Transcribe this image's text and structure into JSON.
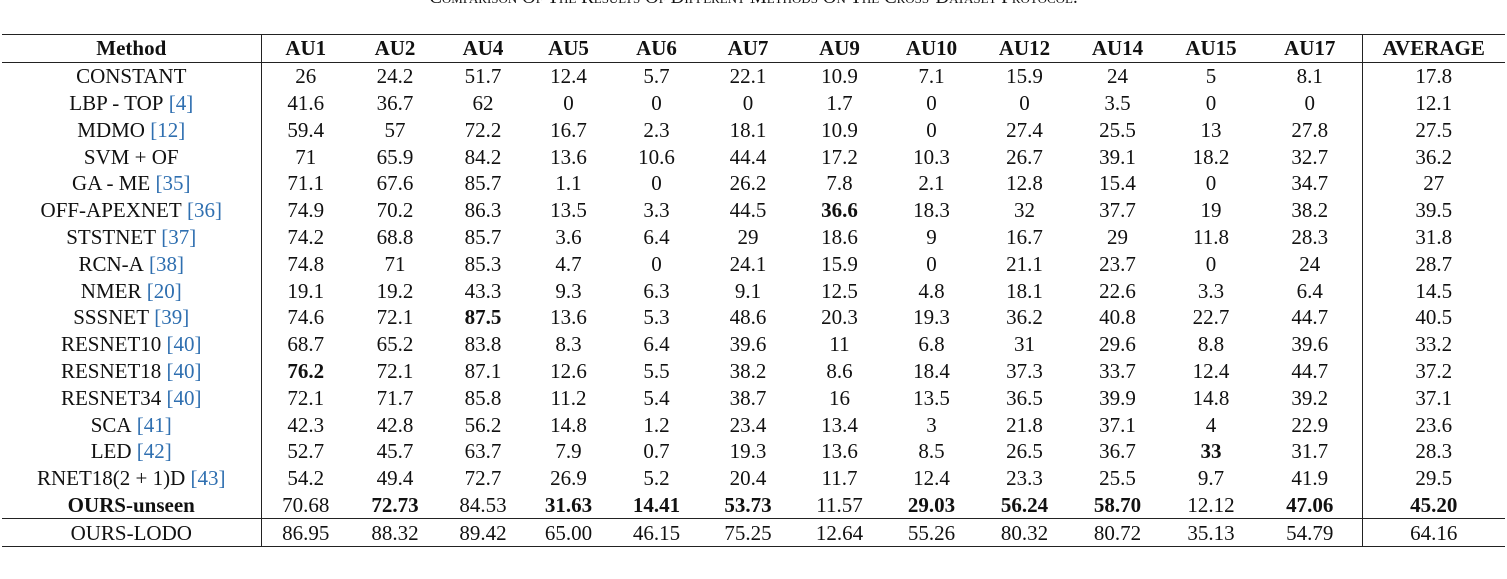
{
  "title": "Comparison Of The Results Of Different Methods On The Cross-Dataset Protocol.",
  "table": {
    "header": [
      "Method",
      "AU1",
      "AU2",
      "AU4",
      "AU5",
      "AU6",
      "AU7",
      "AU9",
      "AU10",
      "AU12",
      "AU14",
      "AU15",
      "AU17",
      "AVERAGE"
    ],
    "rows": [
      {
        "method": "CONSTANT",
        "values": [
          "26",
          "24.2",
          "51.7",
          "12.4",
          "5.7",
          "22.1",
          "10.9",
          "7.1",
          "15.9",
          "24",
          "5",
          "8.1",
          "17.8"
        ],
        "bold": []
      },
      {
        "method": "LBP - TOP",
        "ref": "[4]",
        "values": [
          "41.6",
          "36.7",
          "62",
          "0",
          "0",
          "0",
          "1.7",
          "0",
          "0",
          "3.5",
          "0",
          "0",
          "12.1"
        ],
        "bold": []
      },
      {
        "method": "MDMO",
        "ref": "[12]",
        "values": [
          "59.4",
          "57",
          "72.2",
          "16.7",
          "2.3",
          "18.1",
          "10.9",
          "0",
          "27.4",
          "25.5",
          "13",
          "27.8",
          "27.5"
        ],
        "bold": []
      },
      {
        "method": "SVM + OF",
        "values": [
          "71",
          "65.9",
          "84.2",
          "13.6",
          "10.6",
          "44.4",
          "17.2",
          "10.3",
          "26.7",
          "39.1",
          "18.2",
          "32.7",
          "36.2"
        ],
        "bold": []
      },
      {
        "method": "GA - ME",
        "ref": "[35]",
        "values": [
          "71.1",
          "67.6",
          "85.7",
          "1.1",
          "0",
          "26.2",
          "7.8",
          "2.1",
          "12.8",
          "15.4",
          "0",
          "34.7",
          "27"
        ],
        "bold": []
      },
      {
        "method": "OFF-APEXNET",
        "ref": "[36]",
        "values": [
          "74.9",
          "70.2",
          "86.3",
          "13.5",
          "3.3",
          "44.5",
          "36.6",
          "18.3",
          "32",
          "37.7",
          "19",
          "38.2",
          "39.5"
        ],
        "bold": [
          6
        ]
      },
      {
        "method": "STSTNET",
        "ref": "[37]",
        "values": [
          "74.2",
          "68.8",
          "85.7",
          "3.6",
          "6.4",
          "29",
          "18.6",
          "9",
          "16.7",
          "29",
          "11.8",
          "28.3",
          "31.8"
        ],
        "bold": []
      },
      {
        "method": "RCN-A",
        "ref": "[38]",
        "values": [
          "74.8",
          "71",
          "85.3",
          "4.7",
          "0",
          "24.1",
          "15.9",
          "0",
          "21.1",
          "23.7",
          "0",
          "24",
          "28.7"
        ],
        "bold": []
      },
      {
        "method": "NMER",
        "ref": "[20]",
        "values": [
          "19.1",
          "19.2",
          "43.3",
          "9.3",
          "6.3",
          "9.1",
          "12.5",
          "4.8",
          "18.1",
          "22.6",
          "3.3",
          "6.4",
          "14.5"
        ],
        "bold": []
      },
      {
        "method": "SSSNET",
        "ref": "[39]",
        "values": [
          "74.6",
          "72.1",
          "87.5",
          "13.6",
          "5.3",
          "48.6",
          "20.3",
          "19.3",
          "36.2",
          "40.8",
          "22.7",
          "44.7",
          "40.5"
        ],
        "bold": [
          2
        ]
      },
      {
        "method": "RESNET10",
        "ref": "[40]",
        "values": [
          "68.7",
          "65.2",
          "83.8",
          "8.3",
          "6.4",
          "39.6",
          "11",
          "6.8",
          "31",
          "29.6",
          "8.8",
          "39.6",
          "33.2"
        ],
        "bold": []
      },
      {
        "method": "RESNET18",
        "ref": "[40]",
        "values": [
          "76.2",
          "72.1",
          "87.1",
          "12.6",
          "5.5",
          "38.2",
          "8.6",
          "18.4",
          "37.3",
          "33.7",
          "12.4",
          "44.7",
          "37.2"
        ],
        "bold": [
          0
        ]
      },
      {
        "method": "RESNET34",
        "ref": "[40]",
        "values": [
          "72.1",
          "71.7",
          "85.8",
          "11.2",
          "5.4",
          "38.7",
          "16",
          "13.5",
          "36.5",
          "39.9",
          "14.8",
          "39.2",
          "37.1"
        ],
        "bold": []
      },
      {
        "method": "SCA",
        "ref": "[41]",
        "values": [
          "42.3",
          "42.8",
          "56.2",
          "14.8",
          "1.2",
          "23.4",
          "13.4",
          "3",
          "21.8",
          "37.1",
          "4",
          "22.9",
          "23.6"
        ],
        "bold": []
      },
      {
        "method": "LED",
        "ref": "[42]",
        "values": [
          "52.7",
          "45.7",
          "63.7",
          "7.9",
          "0.7",
          "19.3",
          "13.6",
          "8.5",
          "26.5",
          "36.7",
          "33",
          "31.7",
          "28.3"
        ],
        "bold": [
          10
        ]
      },
      {
        "method": "RNET18(2 + 1)D",
        "ref": "[43]",
        "values": [
          "54.2",
          "49.4",
          "72.7",
          "26.9",
          "5.2",
          "20.4",
          "11.7",
          "12.4",
          "23.3",
          "25.5",
          "9.7",
          "41.9",
          "29.5"
        ],
        "bold": []
      },
      {
        "method": "OURS-unseen",
        "method_bold": true,
        "values": [
          "70.68",
          "72.73",
          "84.53",
          "31.63",
          "14.41",
          "53.73",
          "11.57",
          "29.03",
          "56.24",
          "58.70",
          "12.12",
          "47.06",
          "45.20"
        ],
        "bold": [
          1,
          3,
          4,
          5,
          7,
          8,
          9,
          11,
          12
        ]
      },
      {
        "method": "OURS-LODO",
        "values": [
          "86.95",
          "88.32",
          "89.42",
          "65.00",
          "46.15",
          "75.25",
          "12.64",
          "55.26",
          "80.32",
          "80.72",
          "35.13",
          "54.79",
          "64.16"
        ],
        "bold": []
      }
    ]
  }
}
